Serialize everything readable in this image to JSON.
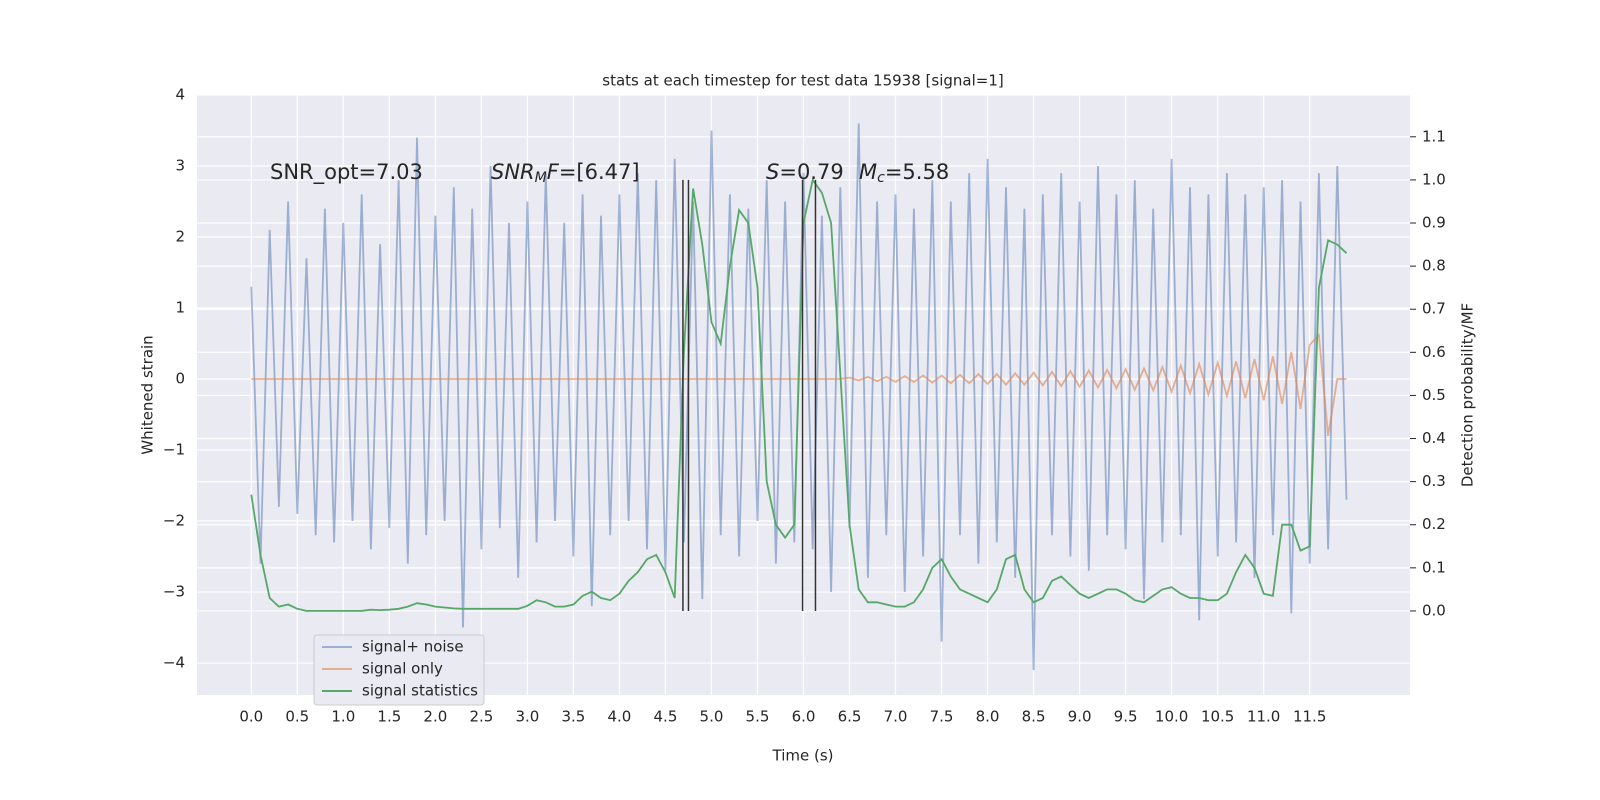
{
  "chart_data": {
    "type": "line",
    "title": "stats at each timestep for test data 15938 [signal=1]",
    "xlabel": "Time (s)",
    "ylabel": "Whitened strain",
    "y2label": "Detection probability/MF",
    "xlim": [
      -0.59,
      12.59
    ],
    "ylim": [
      -4.45,
      4.0
    ],
    "y2lim": [
      -0.195,
      1.197
    ],
    "grid": true,
    "legend": "lower left",
    "xticks": [
      {
        "value": 0,
        "label": "0.0"
      },
      {
        "value": 0.5,
        "label": "0.5"
      },
      {
        "value": 1,
        "label": "1.0"
      },
      {
        "value": 1.5,
        "label": "1.5"
      },
      {
        "value": 2,
        "label": "2.0"
      },
      {
        "value": 2.5,
        "label": "2.5"
      },
      {
        "value": 3,
        "label": "3.0"
      },
      {
        "value": 3.5,
        "label": "3.5"
      },
      {
        "value": 4,
        "label": "4.0"
      },
      {
        "value": 4.5,
        "label": "4.5"
      },
      {
        "value": 5,
        "label": "5.0"
      },
      {
        "value": 5.5,
        "label": "5.5"
      },
      {
        "value": 6,
        "label": "6.0"
      },
      {
        "value": 6.5,
        "label": "6.5"
      },
      {
        "value": 7,
        "label": "7.0"
      },
      {
        "value": 7.5,
        "label": "7.5"
      },
      {
        "value": 8,
        "label": "8.0"
      },
      {
        "value": 8.5,
        "label": "8.5"
      },
      {
        "value": 9,
        "label": "9.0"
      },
      {
        "value": 9.5,
        "label": "9.5"
      },
      {
        "value": 10,
        "label": "10.0"
      },
      {
        "value": 10.5,
        "label": "10.5"
      },
      {
        "value": 11,
        "label": "11.0"
      },
      {
        "value": 11.5,
        "label": "11.5"
      }
    ],
    "yticks": [
      {
        "value": -4,
        "label": "−4"
      },
      {
        "value": -3,
        "label": "−3"
      },
      {
        "value": -2,
        "label": "−2"
      },
      {
        "value": -1,
        "label": "−1"
      },
      0,
      1,
      2,
      3,
      4
    ],
    "y2ticks": [
      {
        "value": 0,
        "label": "0.0"
      },
      {
        "value": 0.1,
        "label": "0.1"
      },
      {
        "value": 0.2,
        "label": "0.2"
      },
      {
        "value": 0.3,
        "label": "0.3"
      },
      {
        "value": 0.4,
        "label": "0.4"
      },
      {
        "value": 0.5,
        "label": "0.5"
      },
      {
        "value": 0.6,
        "label": "0.6"
      },
      {
        "value": 0.7,
        "label": "0.7"
      },
      {
        "value": 0.8,
        "label": "0.8"
      },
      {
        "value": 0.9,
        "label": "0.9"
      },
      {
        "value": 1,
        "label": "1.0"
      },
      {
        "value": 1.1,
        "label": "1.1"
      }
    ],
    "x": [
      0,
      0.1,
      0.2,
      0.3,
      0.4,
      0.5,
      0.6,
      0.7,
      0.8,
      0.9,
      1,
      1.1,
      1.2,
      1.3,
      1.4,
      1.5,
      1.6,
      1.7,
      1.8,
      1.9,
      2,
      2.1,
      2.2,
      2.3,
      2.4,
      2.5,
      2.6,
      2.7,
      2.8,
      2.9,
      3,
      3.1,
      3.2,
      3.3,
      3.4,
      3.5,
      3.6,
      3.7,
      3.8,
      3.9,
      4,
      4.1,
      4.2,
      4.3,
      4.4,
      4.5,
      4.6,
      4.7,
      4.8,
      4.9,
      5,
      5.1,
      5.2,
      5.3,
      5.4,
      5.5,
      5.6,
      5.7,
      5.8,
      5.9,
      6,
      6.1,
      6.2,
      6.3,
      6.4,
      6.5,
      6.6,
      6.7,
      6.8,
      6.9,
      7,
      7.1,
      7.2,
      7.3,
      7.4,
      7.5,
      7.6,
      7.7,
      7.8,
      7.9,
      8,
      8.1,
      8.2,
      8.3,
      8.4,
      8.5,
      8.6,
      8.7,
      8.8,
      8.9,
      9,
      9.1,
      9.2,
      9.3,
      9.4,
      9.5,
      9.6,
      9.7,
      9.8,
      9.9,
      10,
      10.1,
      10.2,
      10.3,
      10.4,
      10.5,
      10.6,
      10.7,
      10.8,
      10.9,
      11,
      11.1,
      11.2,
      11.3,
      11.4,
      11.5,
      11.6,
      11.7,
      11.8,
      11.9
    ],
    "series": [
      {
        "name": "signal+ noise",
        "color": "#4c72b0",
        "alpha": 0.5,
        "values": [
          1.3,
          -2.6,
          2.1,
          -1.8,
          2.5,
          -1.9,
          1.7,
          -2.2,
          2.4,
          -2.3,
          2.2,
          -2.0,
          2.6,
          -2.4,
          1.9,
          -2.1,
          2.8,
          -2.6,
          3.4,
          -2.2,
          2.3,
          -2.0,
          2.7,
          -3.5,
          2.4,
          -2.4,
          3.0,
          -2.1,
          2.2,
          -2.8,
          2.5,
          -2.3,
          2.9,
          -2.0,
          2.2,
          -2.5,
          2.6,
          -3.2,
          2.3,
          -2.2,
          2.6,
          -2.0,
          2.9,
          -2.4,
          2.8,
          -2.7,
          3.1,
          -2.3,
          2.5,
          -3.1,
          3.5,
          -2.2,
          2.6,
          -2.5,
          2.4,
          -2.0,
          2.8,
          -2.6,
          2.5,
          -2.3,
          2.9,
          -2.4,
          2.3,
          -3.0,
          2.7,
          -2.1,
          3.6,
          -2.8,
          2.5,
          -2.2,
          2.6,
          -3.0,
          2.4,
          -2.5,
          2.8,
          -3.7,
          2.5,
          -2.2,
          2.9,
          -2.6,
          3.1,
          -2.3,
          2.7,
          -2.8,
          2.4,
          -4.1,
          2.6,
          -2.2,
          2.9,
          -2.5,
          2.5,
          -2.7,
          3.0,
          -2.2,
          2.6,
          -2.4,
          2.8,
          -3.1,
          2.4,
          -2.3,
          3.1,
          -2.2,
          2.7,
          -3.4,
          2.6,
          -2.5,
          2.9,
          -2.3,
          2.6,
          -2.8,
          2.7,
          -2.2,
          2.8,
          -3.3,
          2.5,
          -2.6,
          2.9,
          -2.4,
          3.0,
          -1.7
        ]
      },
      {
        "name": "signal only",
        "color": "#dd8452",
        "alpha": 0.6,
        "values": [
          0,
          0,
          0,
          0,
          0,
          0,
          0,
          0,
          0,
          0,
          0,
          0,
          0,
          0,
          0,
          0,
          0,
          0,
          0,
          0,
          0,
          0,
          0,
          0,
          0,
          0,
          0,
          0,
          0,
          0,
          0,
          0,
          0,
          0,
          0,
          0,
          0,
          0,
          0,
          0,
          0,
          0,
          0,
          0,
          0,
          0,
          0,
          0,
          0,
          0,
          0,
          0,
          0,
          0,
          0,
          0,
          0,
          0,
          0,
          0,
          0,
          0,
          0,
          0,
          0,
          0.02,
          -0.02,
          0.03,
          -0.03,
          0.03,
          -0.04,
          0.04,
          -0.04,
          0.05,
          -0.05,
          0.05,
          -0.06,
          0.06,
          -0.06,
          0.07,
          -0.07,
          0.07,
          -0.08,
          0.08,
          -0.08,
          0.09,
          -0.09,
          0.1,
          -0.1,
          0.11,
          -0.11,
          0.12,
          -0.12,
          0.13,
          -0.13,
          0.14,
          -0.15,
          0.15,
          -0.16,
          0.17,
          -0.18,
          0.19,
          -0.2,
          0.21,
          -0.22,
          0.23,
          -0.24,
          0.25,
          -0.27,
          0.28,
          -0.3,
          0.32,
          -0.35,
          0.38,
          -0.42,
          0.48,
          0.62,
          -0.8,
          0,
          0
        ]
      },
      {
        "name": "signal statistics",
        "color": "#55a868",
        "alpha": 1,
        "axis": "y2",
        "values": [
          0.27,
          0.13,
          0.03,
          0.01,
          0.015,
          0.005,
          0,
          0,
          0,
          0,
          0,
          0,
          0,
          0.003,
          0.002,
          0.003,
          0.005,
          0.01,
          0.018,
          0.015,
          0.01,
          0.008,
          0.006,
          0.005,
          0.005,
          0.005,
          0.005,
          0.005,
          0.005,
          0.005,
          0.012,
          0.025,
          0.02,
          0.01,
          0.01,
          0.015,
          0.035,
          0.045,
          0.03,
          0.025,
          0.04,
          0.07,
          0.09,
          0.12,
          0.13,
          0.09,
          0.03,
          0.6,
          0.98,
          0.85,
          0.67,
          0.62,
          0.8,
          0.93,
          0.9,
          0.75,
          0.3,
          0.2,
          0.17,
          0.2,
          0.9,
          1.0,
          0.97,
          0.9,
          0.55,
          0.2,
          0.05,
          0.02,
          0.02,
          0.015,
          0.01,
          0.01,
          0.02,
          0.05,
          0.1,
          0.12,
          0.08,
          0.05,
          0.04,
          0.03,
          0.02,
          0.05,
          0.12,
          0.13,
          0.05,
          0.02,
          0.03,
          0.07,
          0.08,
          0.06,
          0.04,
          0.03,
          0.04,
          0.05,
          0.05,
          0.04,
          0.025,
          0.02,
          0.035,
          0.05,
          0.055,
          0.04,
          0.03,
          0.03,
          0.025,
          0.025,
          0.04,
          0.09,
          0.13,
          0.1,
          0.04,
          0.035,
          0.2,
          0.2,
          0.14,
          0.15,
          0.75,
          0.86,
          0.85,
          0.83
        ]
      }
    ],
    "vlines": {
      "x": [
        4.69,
        4.75,
        5.99,
        6.13
      ],
      "ymin": 0,
      "ymax": 1.0,
      "axis": "y2",
      "color": "#333333"
    },
    "annotations": [
      [
        {
          "text": "SNR_opt=7.03",
          "style": "normal"
        }
      ],
      [
        {
          "text": "SNR",
          "style": "italic"
        },
        {
          "text": "M",
          "style": "sub"
        },
        {
          "text": "F",
          "style": "italic"
        },
        {
          "text": "=[6.47]",
          "style": "normal"
        }
      ],
      [
        {
          "text": "S",
          "style": "italic"
        },
        {
          "text": "=0.79",
          "style": "normal"
        }
      ],
      [
        {
          "text": "M",
          "style": "italic"
        },
        {
          "text": "c",
          "style": "sub"
        },
        {
          "text": "=5.58",
          "style": "normal"
        }
      ]
    ]
  }
}
